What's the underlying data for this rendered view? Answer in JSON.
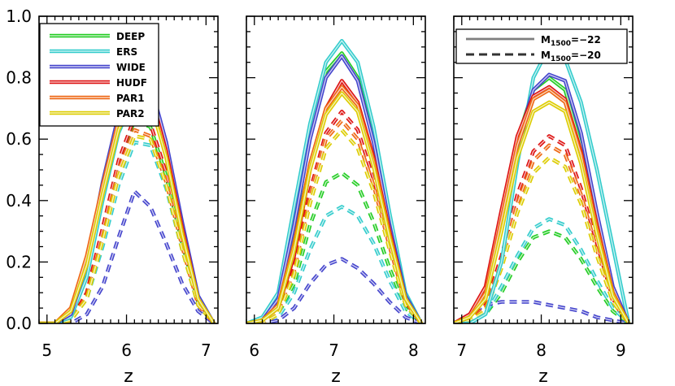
{
  "chart_data": [
    {
      "type": "line",
      "xlabel": "z",
      "xlim": [
        4.9,
        7.15
      ],
      "ylim": [
        0.0,
        1.0
      ],
      "xticks": [
        "5",
        "6",
        "7"
      ],
      "yticks": [
        "1.0",
        "0.8",
        "0.6",
        "0.4",
        "0.2",
        "0.0"
      ],
      "legend": {
        "placement": "top-left",
        "entries": [
          "DEEP",
          "ERS",
          "WIDE",
          "HUDF",
          "PAR1",
          "PAR2"
        ]
      },
      "x": [
        4.9,
        5.1,
        5.3,
        5.5,
        5.7,
        5.9,
        6.1,
        6.3,
        6.5,
        6.7,
        6.9,
        7.1
      ],
      "series": [
        {
          "name": "DEEP",
          "line": "solid",
          "color": "#22cc22",
          "values": [
            0.0,
            0.0,
            0.03,
            0.18,
            0.42,
            0.64,
            0.75,
            0.74,
            0.55,
            0.3,
            0.08,
            0.0
          ]
        },
        {
          "name": "ERS",
          "line": "solid",
          "color": "#33cccc",
          "values": [
            0.0,
            0.0,
            0.02,
            0.15,
            0.4,
            0.62,
            0.74,
            0.73,
            0.56,
            0.31,
            0.08,
            0.0
          ]
        },
        {
          "name": "WIDE",
          "line": "solid",
          "color": "#4444cc",
          "values": [
            0.0,
            0.0,
            0.03,
            0.19,
            0.46,
            0.68,
            0.8,
            0.78,
            0.59,
            0.33,
            0.09,
            0.0
          ]
        },
        {
          "name": "HUDF",
          "line": "solid",
          "color": "#dd1111",
          "values": [
            0.0,
            0.0,
            0.04,
            0.2,
            0.44,
            0.65,
            0.77,
            0.75,
            0.56,
            0.31,
            0.08,
            0.0
          ]
        },
        {
          "name": "PAR1",
          "line": "solid",
          "color": "#ee6611",
          "values": [
            0.0,
            0.0,
            0.05,
            0.22,
            0.45,
            0.66,
            0.76,
            0.73,
            0.54,
            0.3,
            0.08,
            0.0
          ]
        },
        {
          "name": "PAR2",
          "line": "solid",
          "color": "#ddcc00",
          "values": [
            0.0,
            0.0,
            0.04,
            0.19,
            0.42,
            0.63,
            0.74,
            0.72,
            0.54,
            0.29,
            0.08,
            0.0
          ]
        },
        {
          "name": "DEEP",
          "line": "dashed",
          "color": "#22cc22",
          "values": [
            0.0,
            0.0,
            0.01,
            0.1,
            0.3,
            0.52,
            0.66,
            0.64,
            0.48,
            0.26,
            0.07,
            0.0
          ]
        },
        {
          "name": "ERS",
          "line": "dashed",
          "color": "#33cccc",
          "values": [
            0.0,
            0.0,
            0.01,
            0.08,
            0.25,
            0.45,
            0.59,
            0.58,
            0.44,
            0.24,
            0.06,
            0.0
          ]
        },
        {
          "name": "WIDE",
          "line": "dashed",
          "color": "#4444cc",
          "values": [
            0.0,
            0.0,
            0.0,
            0.03,
            0.12,
            0.28,
            0.43,
            0.38,
            0.26,
            0.13,
            0.04,
            0.0
          ]
        },
        {
          "name": "HUDF",
          "line": "dashed",
          "color": "#dd1111",
          "values": [
            0.0,
            0.0,
            0.01,
            0.1,
            0.31,
            0.53,
            0.67,
            0.65,
            0.49,
            0.27,
            0.07,
            0.0
          ]
        },
        {
          "name": "PAR1",
          "line": "dashed",
          "color": "#ee6611",
          "values": [
            0.0,
            0.0,
            0.01,
            0.09,
            0.28,
            0.5,
            0.63,
            0.61,
            0.46,
            0.25,
            0.06,
            0.0
          ]
        },
        {
          "name": "PAR2",
          "line": "dashed",
          "color": "#ddcc00",
          "values": [
            0.0,
            0.0,
            0.01,
            0.08,
            0.27,
            0.48,
            0.61,
            0.6,
            0.45,
            0.24,
            0.06,
            0.0
          ]
        }
      ]
    },
    {
      "type": "line",
      "xlabel": "z",
      "xlim": [
        5.9,
        8.15
      ],
      "ylim": [
        0.0,
        1.0
      ],
      "xticks": [
        "6",
        "7",
        "8"
      ],
      "x": [
        5.9,
        6.1,
        6.3,
        6.5,
        6.7,
        6.9,
        7.1,
        7.3,
        7.5,
        7.7,
        7.9,
        8.1
      ],
      "series": [
        {
          "name": "DEEP",
          "line": "solid",
          "color": "#22cc22",
          "values": [
            0.0,
            0.01,
            0.06,
            0.3,
            0.62,
            0.82,
            0.88,
            0.8,
            0.6,
            0.33,
            0.09,
            0.0
          ]
        },
        {
          "name": "ERS",
          "line": "solid",
          "color": "#33cccc",
          "values": [
            0.0,
            0.02,
            0.1,
            0.38,
            0.65,
            0.85,
            0.92,
            0.85,
            0.64,
            0.36,
            0.1,
            0.0
          ]
        },
        {
          "name": "WIDE",
          "line": "solid",
          "color": "#4444cc",
          "values": [
            0.0,
            0.01,
            0.08,
            0.32,
            0.6,
            0.8,
            0.87,
            0.79,
            0.59,
            0.32,
            0.09,
            0.0
          ]
        },
        {
          "name": "HUDF",
          "line": "solid",
          "color": "#dd1111",
          "values": [
            0.0,
            0.01,
            0.05,
            0.22,
            0.5,
            0.7,
            0.79,
            0.72,
            0.54,
            0.3,
            0.08,
            0.0
          ]
        },
        {
          "name": "PAR1",
          "line": "solid",
          "color": "#ee6611",
          "values": [
            0.0,
            0.01,
            0.06,
            0.26,
            0.52,
            0.7,
            0.77,
            0.71,
            0.53,
            0.29,
            0.08,
            0.0
          ]
        },
        {
          "name": "PAR2",
          "line": "solid",
          "color": "#ddcc00",
          "values": [
            0.0,
            0.01,
            0.05,
            0.24,
            0.5,
            0.68,
            0.75,
            0.69,
            0.51,
            0.28,
            0.08,
            0.0
          ]
        },
        {
          "name": "DEEP",
          "line": "dashed",
          "color": "#22cc22",
          "values": [
            0.0,
            0.0,
            0.03,
            0.13,
            0.32,
            0.46,
            0.49,
            0.45,
            0.33,
            0.18,
            0.05,
            0.0
          ]
        },
        {
          "name": "ERS",
          "line": "dashed",
          "color": "#33cccc",
          "values": [
            0.0,
            0.0,
            0.02,
            0.1,
            0.24,
            0.35,
            0.38,
            0.35,
            0.26,
            0.14,
            0.04,
            0.0
          ]
        },
        {
          "name": "WIDE",
          "line": "dashed",
          "color": "#4444cc",
          "values": [
            0.0,
            0.0,
            0.01,
            0.05,
            0.13,
            0.19,
            0.21,
            0.18,
            0.13,
            0.07,
            0.02,
            0.0
          ]
        },
        {
          "name": "HUDF",
          "line": "dashed",
          "color": "#dd1111",
          "values": [
            0.0,
            0.0,
            0.04,
            0.18,
            0.43,
            0.62,
            0.69,
            0.63,
            0.47,
            0.26,
            0.07,
            0.0
          ]
        },
        {
          "name": "PAR1",
          "line": "dashed",
          "color": "#ee6611",
          "values": [
            0.0,
            0.0,
            0.04,
            0.17,
            0.41,
            0.6,
            0.66,
            0.6,
            0.45,
            0.25,
            0.07,
            0.0
          ]
        },
        {
          "name": "PAR2",
          "line": "dashed",
          "color": "#ddcc00",
          "values": [
            0.0,
            0.0,
            0.03,
            0.16,
            0.39,
            0.57,
            0.63,
            0.57,
            0.43,
            0.24,
            0.06,
            0.0
          ]
        }
      ]
    },
    {
      "type": "line",
      "xlabel": "z",
      "xlim": [
        6.9,
        9.15
      ],
      "ylim": [
        0.0,
        1.0
      ],
      "xticks": [
        "7",
        "8",
        "9"
      ],
      "legend": {
        "placement": "top-right"
      },
      "legend_entries": [
        {
          "line": "solid",
          "label_prefix": "M",
          "label_sub": "1500",
          "label_suffix": "=−22"
        },
        {
          "line": "dashed",
          "label_prefix": "M",
          "label_sub": "1500",
          "label_suffix": "=−20"
        }
      ],
      "x": [
        6.9,
        7.1,
        7.3,
        7.5,
        7.7,
        7.9,
        8.1,
        8.3,
        8.5,
        8.7,
        8.9,
        9.1
      ],
      "series": [
        {
          "name": "DEEP",
          "line": "solid",
          "color": "#22cc22",
          "values": [
            0.0,
            0.02,
            0.1,
            0.34,
            0.6,
            0.76,
            0.8,
            0.76,
            0.58,
            0.33,
            0.1,
            0.0
          ]
        },
        {
          "name": "ERS",
          "line": "solid",
          "color": "#33cccc",
          "values": [
            0.0,
            0.0,
            0.03,
            0.2,
            0.52,
            0.8,
            0.9,
            0.86,
            0.72,
            0.5,
            0.25,
            0.0
          ]
        },
        {
          "name": "WIDE",
          "line": "solid",
          "color": "#4444cc",
          "values": [
            0.0,
            0.02,
            0.1,
            0.33,
            0.59,
            0.76,
            0.81,
            0.79,
            0.62,
            0.36,
            0.12,
            0.0
          ]
        },
        {
          "name": "HUDF",
          "line": "solid",
          "color": "#dd1111",
          "values": [
            0.0,
            0.03,
            0.12,
            0.37,
            0.61,
            0.74,
            0.77,
            0.73,
            0.56,
            0.32,
            0.1,
            0.0
          ]
        },
        {
          "name": "PAR1",
          "line": "solid",
          "color": "#ee6611",
          "values": [
            0.0,
            0.02,
            0.1,
            0.34,
            0.58,
            0.73,
            0.76,
            0.72,
            0.55,
            0.31,
            0.1,
            0.0
          ]
        },
        {
          "name": "PAR2",
          "line": "solid",
          "color": "#ddcc00",
          "values": [
            0.0,
            0.02,
            0.08,
            0.3,
            0.54,
            0.69,
            0.72,
            0.69,
            0.52,
            0.29,
            0.09,
            0.0
          ]
        },
        {
          "name": "DEEP",
          "line": "dashed",
          "color": "#22cc22",
          "values": [
            0.0,
            0.01,
            0.03,
            0.1,
            0.2,
            0.28,
            0.3,
            0.28,
            0.21,
            0.12,
            0.04,
            0.0
          ]
        },
        {
          "name": "ERS",
          "line": "dashed",
          "color": "#33cccc",
          "values": [
            0.0,
            0.01,
            0.03,
            0.12,
            0.22,
            0.31,
            0.34,
            0.32,
            0.24,
            0.14,
            0.05,
            0.0
          ]
        },
        {
          "name": "WIDE",
          "line": "dashed",
          "color": "#4444cc",
          "values": [
            0.0,
            0.03,
            0.06,
            0.07,
            0.07,
            0.07,
            0.06,
            0.05,
            0.04,
            0.02,
            0.01,
            0.0
          ]
        },
        {
          "name": "HUDF",
          "line": "dashed",
          "color": "#dd1111",
          "values": [
            0.0,
            0.01,
            0.06,
            0.22,
            0.42,
            0.56,
            0.61,
            0.58,
            0.44,
            0.26,
            0.08,
            0.0
          ]
        },
        {
          "name": "PAR1",
          "line": "dashed",
          "color": "#ee6611",
          "values": [
            0.0,
            0.01,
            0.05,
            0.2,
            0.39,
            0.53,
            0.58,
            0.55,
            0.42,
            0.24,
            0.07,
            0.0
          ]
        },
        {
          "name": "PAR2",
          "line": "dashed",
          "color": "#ddcc00",
          "values": [
            0.0,
            0.01,
            0.04,
            0.18,
            0.36,
            0.49,
            0.54,
            0.51,
            0.39,
            0.22,
            0.07,
            0.0
          ]
        }
      ]
    }
  ]
}
